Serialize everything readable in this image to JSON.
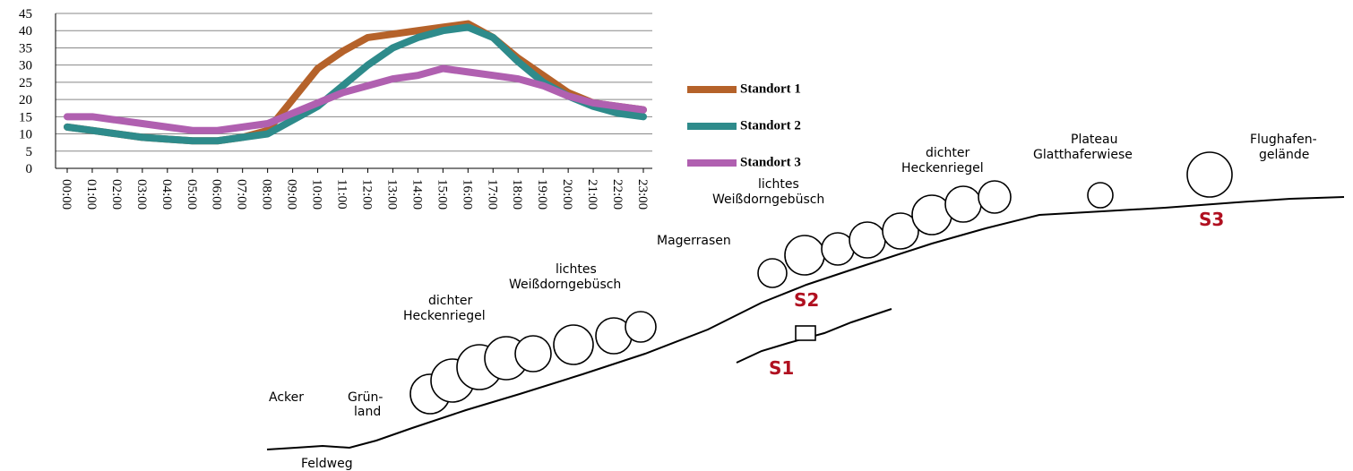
{
  "chart_data": {
    "type": "line",
    "x": [
      "00:00",
      "01:00",
      "02:00",
      "03:00",
      "04:00",
      "05:00",
      "06:00",
      "07:00",
      "08:00",
      "09:00",
      "10:00",
      "11:00",
      "12:00",
      "13:00",
      "14:00",
      "15:00",
      "16:00",
      "17:00",
      "18:00",
      "19:00",
      "20:00",
      "21:00",
      "22:00",
      "23:00"
    ],
    "series": [
      {
        "name": "Standort 1",
        "color": "#b5622a",
        "values": [
          12,
          11,
          10,
          9,
          8.5,
          8,
          8,
          9,
          11,
          20,
          29,
          34,
          38,
          39,
          40,
          41,
          42,
          38,
          32,
          27,
          22,
          19,
          18,
          17
        ]
      },
      {
        "name": "Standort 2",
        "color": "#2e8b8b",
        "values": [
          12,
          11,
          10,
          9,
          8.5,
          8,
          8,
          9,
          10,
          14,
          18,
          24,
          30,
          35,
          38,
          40,
          41,
          38,
          31,
          25,
          21,
          18,
          16,
          15
        ]
      },
      {
        "name": "Standort 3",
        "color": "#b060b0",
        "values": [
          15,
          15,
          14,
          13,
          12,
          11,
          11,
          12,
          13,
          16,
          19,
          22,
          24,
          26,
          27,
          29,
          28,
          27,
          26,
          24,
          21,
          19,
          18,
          17
        ]
      }
    ],
    "ylim": [
      0,
      45
    ],
    "yticks": [
      0,
      5,
      10,
      15,
      20,
      25,
      30,
      35,
      40,
      45
    ],
    "grid": true,
    "legend": "right"
  },
  "diagram": {
    "acker": "Acker",
    "gruenland": [
      "Grün-",
      "land"
    ],
    "feldweg": "Feldweg",
    "hecke_unten": [
      "dichter",
      "Heckenriegel"
    ],
    "gebuesch_unten": [
      "lichtes",
      "Weißdorngebüsch"
    ],
    "magerrasen": "Magerrasen",
    "gebuesch_oben": [
      "lichtes",
      "Weißdorngebüsch"
    ],
    "hecke_oben": [
      "dichter",
      "Heckenriegel"
    ],
    "plateau": [
      "Plateau",
      "Glatthaferwiese"
    ],
    "flughafen": [
      "Flughafen-",
      "gelände"
    ],
    "s1": "S1",
    "s2": "S2",
    "s3": "S3"
  }
}
